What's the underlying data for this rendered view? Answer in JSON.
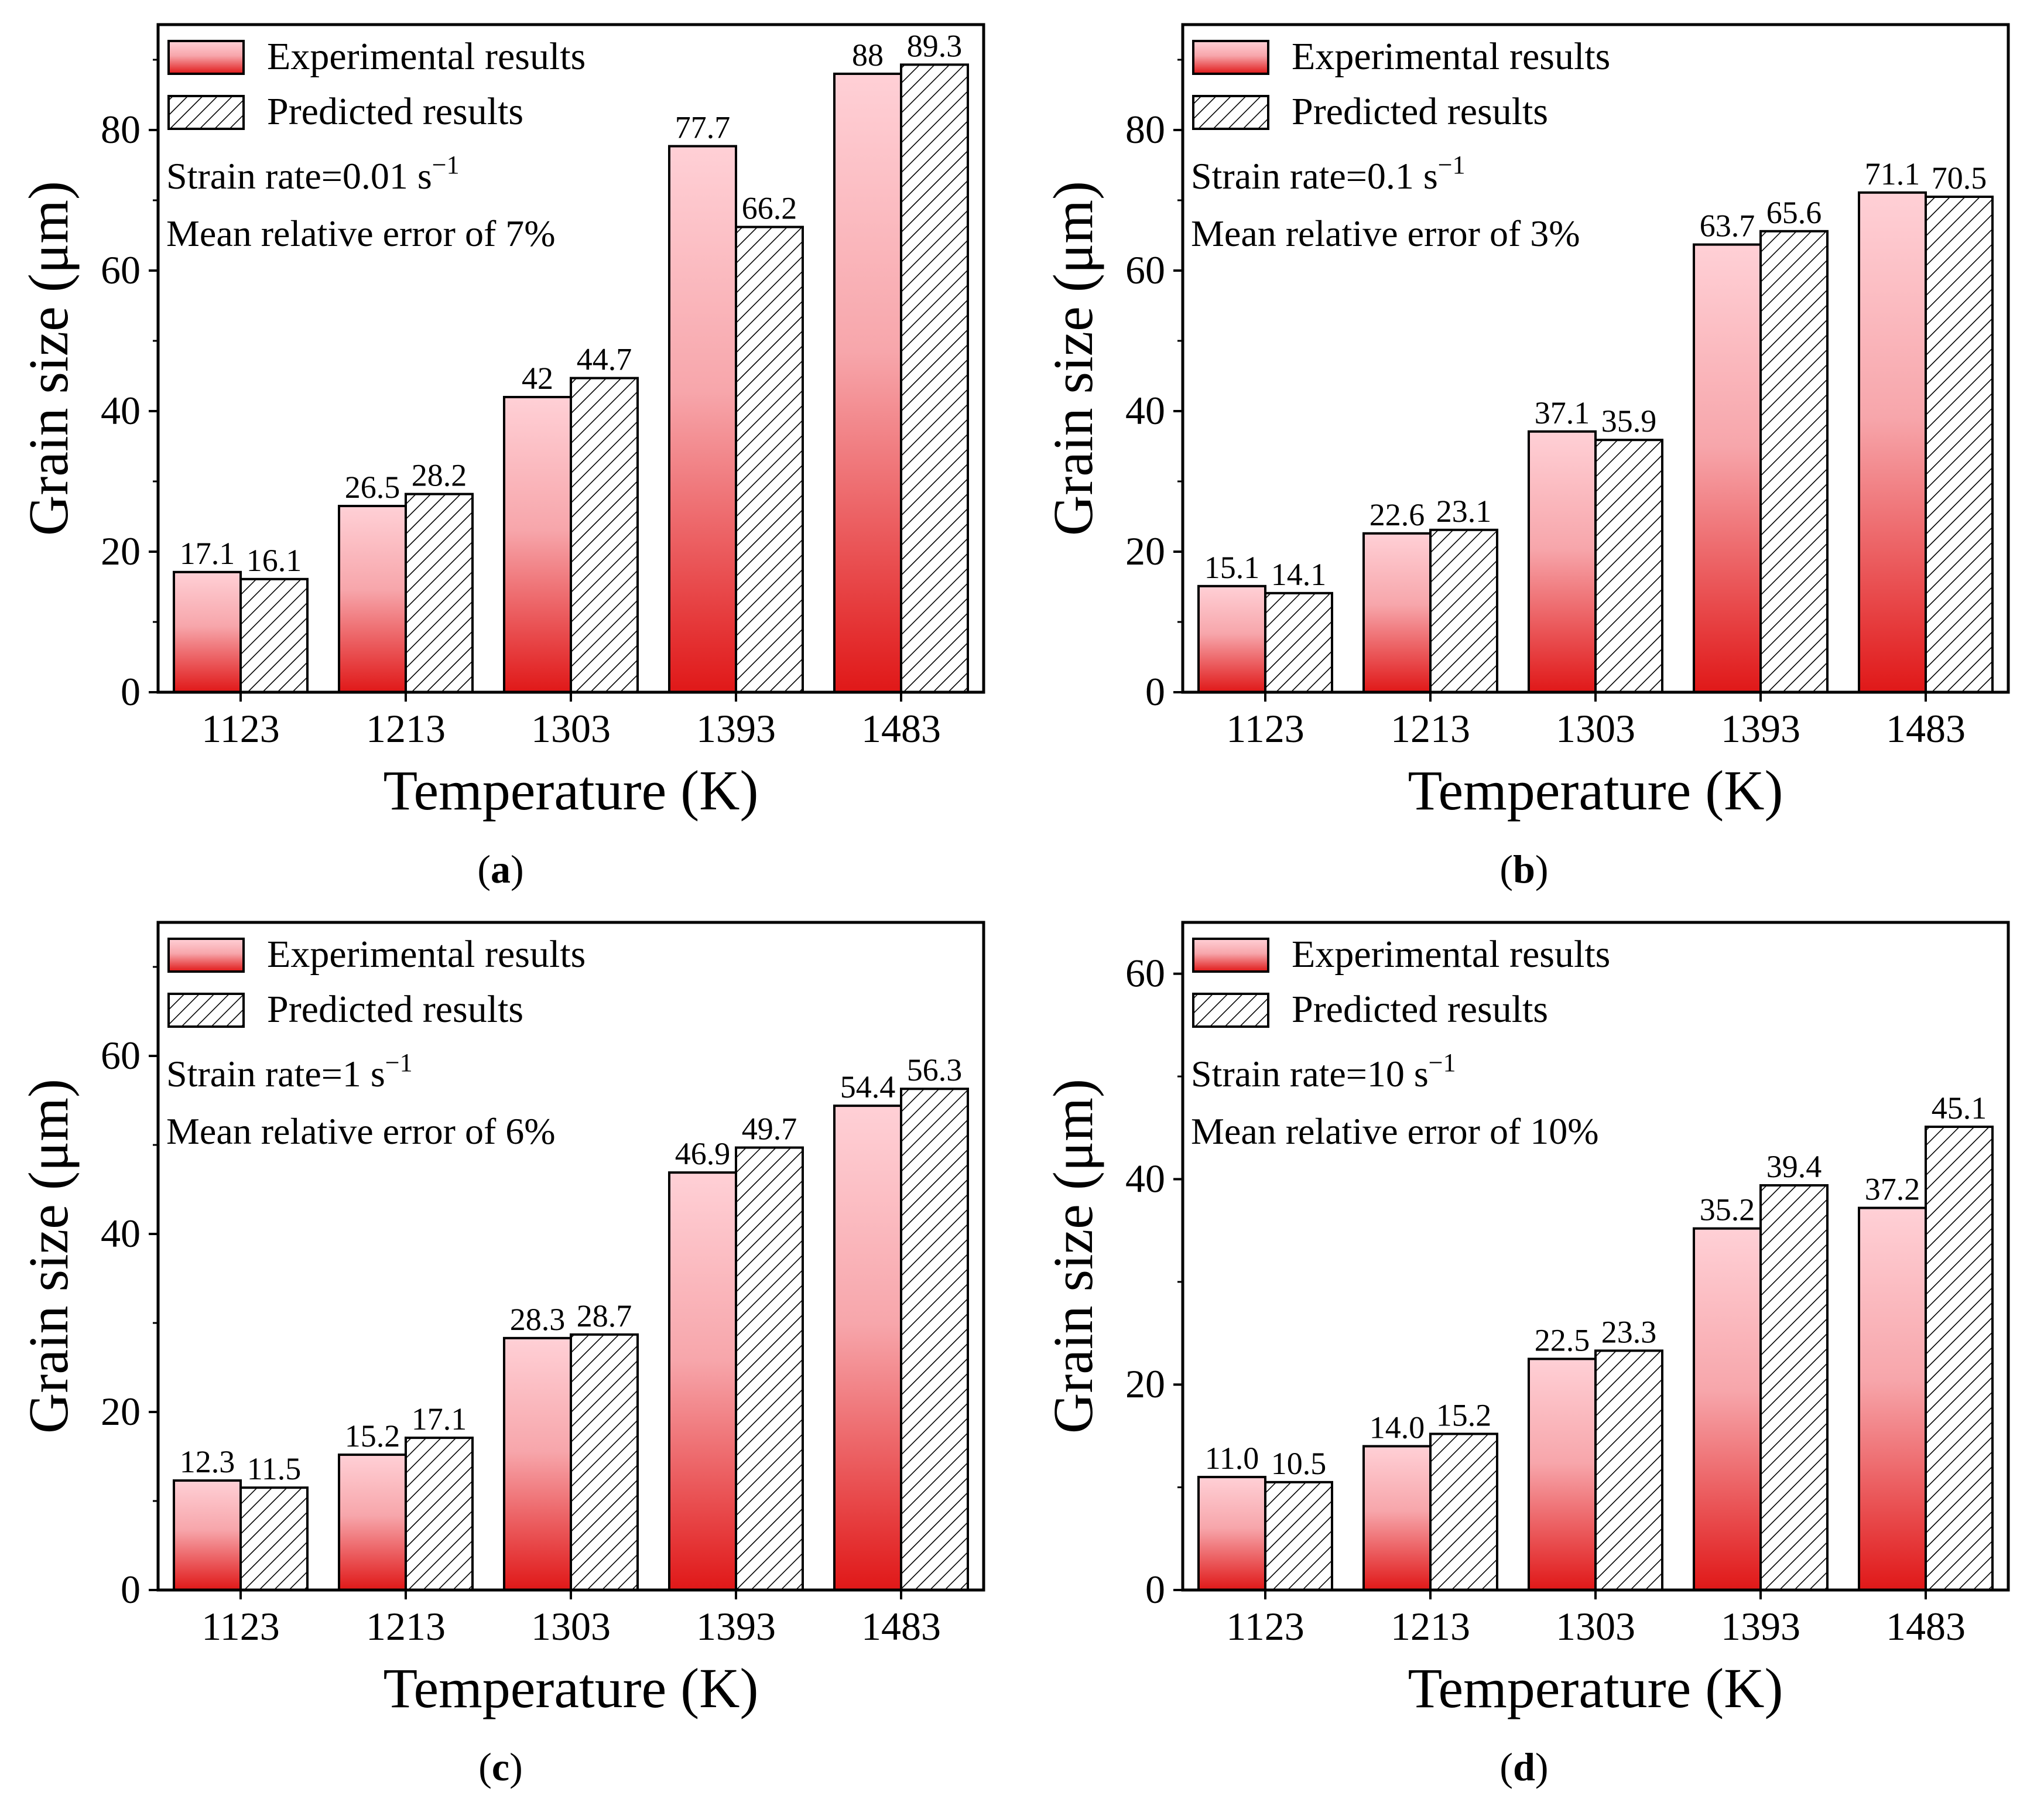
{
  "legend": {
    "experimental": "Experimental results",
    "predicted": "Predicted results"
  },
  "colors": {
    "bar_top": "#ffd0d6",
    "bar_mid": "#f08a8e",
    "bar_bottom": "#e01818",
    "outline": "#000000",
    "hatch": "#000000"
  },
  "chart_data": [
    {
      "type": "bar",
      "panel": "a",
      "xlabel": "Temperature (K)",
      "ylabel": "Grain size (μm)",
      "categories": [
        "1123",
        "1213",
        "1303",
        "1393",
        "1483"
      ],
      "ylim": [
        0,
        95
      ],
      "yticks": [
        0,
        20,
        40,
        60,
        80
      ],
      "annotations": [
        "Strain rate=0.01 s",
        "Mean relative error of 7%"
      ],
      "rate_exponent": "−1",
      "series": [
        {
          "name": "Experimental results",
          "values": [
            17.1,
            26.5,
            42,
            77.7,
            88
          ],
          "labels": [
            "17.1",
            "26.5",
            "42",
            "77.7",
            "88"
          ]
        },
        {
          "name": "Predicted results",
          "values": [
            16.1,
            28.2,
            44.7,
            66.2,
            89.3
          ],
          "labels": [
            "16.1",
            "28.2",
            "44.7",
            "66.2",
            "89.3"
          ]
        }
      ]
    },
    {
      "type": "bar",
      "panel": "b",
      "xlabel": "Temperature (K)",
      "ylabel": "Grain size (μm)",
      "categories": [
        "1123",
        "1213",
        "1303",
        "1393",
        "1483"
      ],
      "ylim": [
        0,
        95
      ],
      "yticks": [
        0,
        20,
        40,
        60,
        80
      ],
      "annotations": [
        "Strain rate=0.1 s",
        "Mean relative error of 3%"
      ],
      "rate_exponent": "−1",
      "series": [
        {
          "name": "Experimental results",
          "values": [
            15.1,
            22.6,
            37.1,
            63.7,
            71.1
          ],
          "labels": [
            "15.1",
            "22.6",
            "37.1",
            "63.7",
            "71.1"
          ]
        },
        {
          "name": "Predicted results",
          "values": [
            14.1,
            23.1,
            35.9,
            65.6,
            70.5
          ],
          "labels": [
            "14.1",
            "23.1",
            "35.9",
            "65.6",
            "70.5"
          ]
        }
      ]
    },
    {
      "type": "bar",
      "panel": "c",
      "xlabel": "Temperature (K)",
      "ylabel": "Grain size (μm)",
      "categories": [
        "1123",
        "1213",
        "1303",
        "1393",
        "1483"
      ],
      "ylim": [
        0,
        75
      ],
      "yticks": [
        0,
        20,
        40,
        60
      ],
      "annotations": [
        "Strain rate=1 s",
        "Mean relative error of 6%"
      ],
      "rate_exponent": "−1",
      "series": [
        {
          "name": "Experimental results",
          "values": [
            12.3,
            15.2,
            28.3,
            46.9,
            54.4
          ],
          "labels": [
            "12.3",
            "15.2",
            "28.3",
            "46.9",
            "54.4"
          ]
        },
        {
          "name": "Predicted results",
          "values": [
            11.5,
            17.1,
            28.7,
            49.7,
            56.3
          ],
          "labels": [
            "11.5",
            "17.1",
            "28.7",
            "49.7",
            "56.3"
          ]
        }
      ]
    },
    {
      "type": "bar",
      "panel": "d",
      "xlabel": "Temperature (K)",
      "ylabel": "Grain size (μm)",
      "categories": [
        "1123",
        "1213",
        "1303",
        "1393",
        "1483"
      ],
      "ylim": [
        0,
        65
      ],
      "yticks": [
        0,
        20,
        40,
        60
      ],
      "annotations": [
        "Strain rate=10 s",
        "Mean relative error of 10%"
      ],
      "rate_exponent": "−1",
      "series": [
        {
          "name": "Experimental results",
          "values": [
            11.0,
            14.0,
            22.5,
            35.2,
            37.2
          ],
          "labels": [
            "11.0",
            "14.0",
            "22.5",
            "35.2",
            "37.2"
          ]
        },
        {
          "name": "Predicted results",
          "values": [
            10.5,
            15.2,
            23.3,
            39.4,
            45.1
          ],
          "labels": [
            "10.5",
            "15.2",
            "23.3",
            "39.4",
            "45.1"
          ]
        }
      ]
    }
  ],
  "panel_labels": [
    {
      "open": "(",
      "letter": "a",
      "close": ")"
    },
    {
      "open": "(",
      "letter": "b",
      "close": ")"
    },
    {
      "open": "(",
      "letter": "c",
      "close": ")"
    },
    {
      "open": "(",
      "letter": "d",
      "close": ")"
    }
  ]
}
